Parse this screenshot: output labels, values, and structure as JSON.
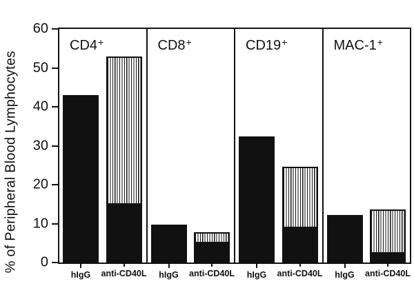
{
  "figure": {
    "background_color": "#ffffff",
    "ink_color": "#111111"
  },
  "chart_data": {
    "type": "bar",
    "title": "",
    "ylabel": "% of Peripheral Blood Lymphocytes",
    "xlabel": "",
    "ylim": [
      0,
      60
    ],
    "yticks": [
      0,
      10,
      20,
      30,
      40,
      50,
      60
    ],
    "grid": false,
    "legend": "none",
    "bar_styles": {
      "hIgG": "solid black",
      "anti-CD40L": "vertical-striped with solid black bottom segment"
    },
    "groups": [
      {
        "name": "CD4",
        "sup": "+",
        "bars": [
          {
            "label": "hIgG",
            "fill": "solid",
            "total": 43
          },
          {
            "label": "anti-CD40L",
            "fill": "striped",
            "total": 53,
            "solid_bottom": 15
          }
        ]
      },
      {
        "name": "CD8",
        "sup": "+",
        "bars": [
          {
            "label": "hIgG",
            "fill": "solid",
            "total": 9.7
          },
          {
            "label": "anti-CD40L",
            "fill": "striped",
            "total": 7.8,
            "solid_bottom": 5.2
          }
        ]
      },
      {
        "name": "CD19",
        "sup": "+",
        "bars": [
          {
            "label": "hIgG",
            "fill": "solid",
            "total": 32.4
          },
          {
            "label": "anti-CD40L",
            "fill": "striped",
            "total": 24.6,
            "solid_bottom": 9.0
          }
        ]
      },
      {
        "name": "MAC-1",
        "sup": "+",
        "bars": [
          {
            "label": "hIgG",
            "fill": "solid",
            "total": 12.2
          },
          {
            "label": "anti-CD40L",
            "fill": "striped",
            "total": 13.6,
            "solid_bottom": 2.5
          }
        ]
      }
    ]
  }
}
